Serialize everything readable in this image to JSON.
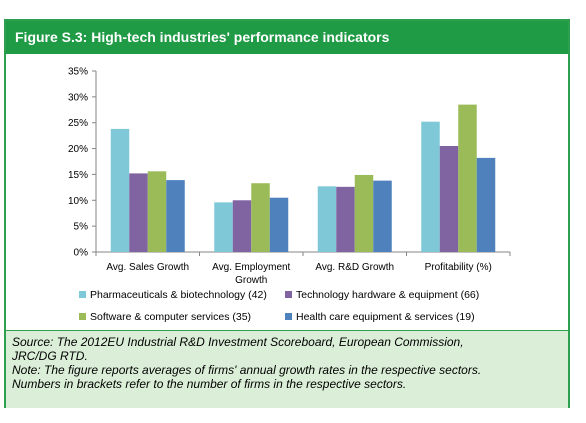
{
  "figure": {
    "title": "Figure S.3:  High-tech industries' performance indicators"
  },
  "source_note": {
    "line1": "Source:  The 2012EU Industrial R&D Investment Scoreboard, European Commission,",
    "line2": "JRC/DG RTD.",
    "line3": "Note: The figure reports averages of firms' annual growth rates in the respective sectors.",
    "line4": "Numbers in brackets refer to the number of firms in the respective sectors."
  },
  "chart_data": {
    "type": "bar",
    "categories": [
      [
        "Avg. Sales Growth"
      ],
      [
        "Avg. Employment",
        "Growth"
      ],
      [
        "Avg. R&D Growth"
      ],
      [
        "Profitability (%)"
      ]
    ],
    "series": [
      {
        "name": "Pharmaceuticals & biotechnology (42)",
        "color": "#7ec8d8",
        "values": [
          23.8,
          9.6,
          12.7,
          25.2
        ]
      },
      {
        "name": "Technology hardware & equipment (66)",
        "color": "#8064a2",
        "values": [
          15.2,
          10.0,
          12.6,
          20.5
        ]
      },
      {
        "name": "Software & computer services (35)",
        "color": "#9bbb59",
        "values": [
          15.6,
          13.3,
          14.9,
          28.5
        ]
      },
      {
        "name": "Health care equipment & services (19)",
        "color": "#4f81bd",
        "values": [
          13.9,
          10.5,
          13.8,
          18.2
        ]
      }
    ],
    "ylim": [
      0,
      35
    ],
    "yticks": [
      "0%",
      "5%",
      "10%",
      "15%",
      "20%",
      "25%",
      "30%",
      "35%"
    ],
    "ytick_values": [
      0,
      5,
      10,
      15,
      20,
      25,
      30,
      35
    ],
    "legend_position": "bottom",
    "grid": false
  }
}
